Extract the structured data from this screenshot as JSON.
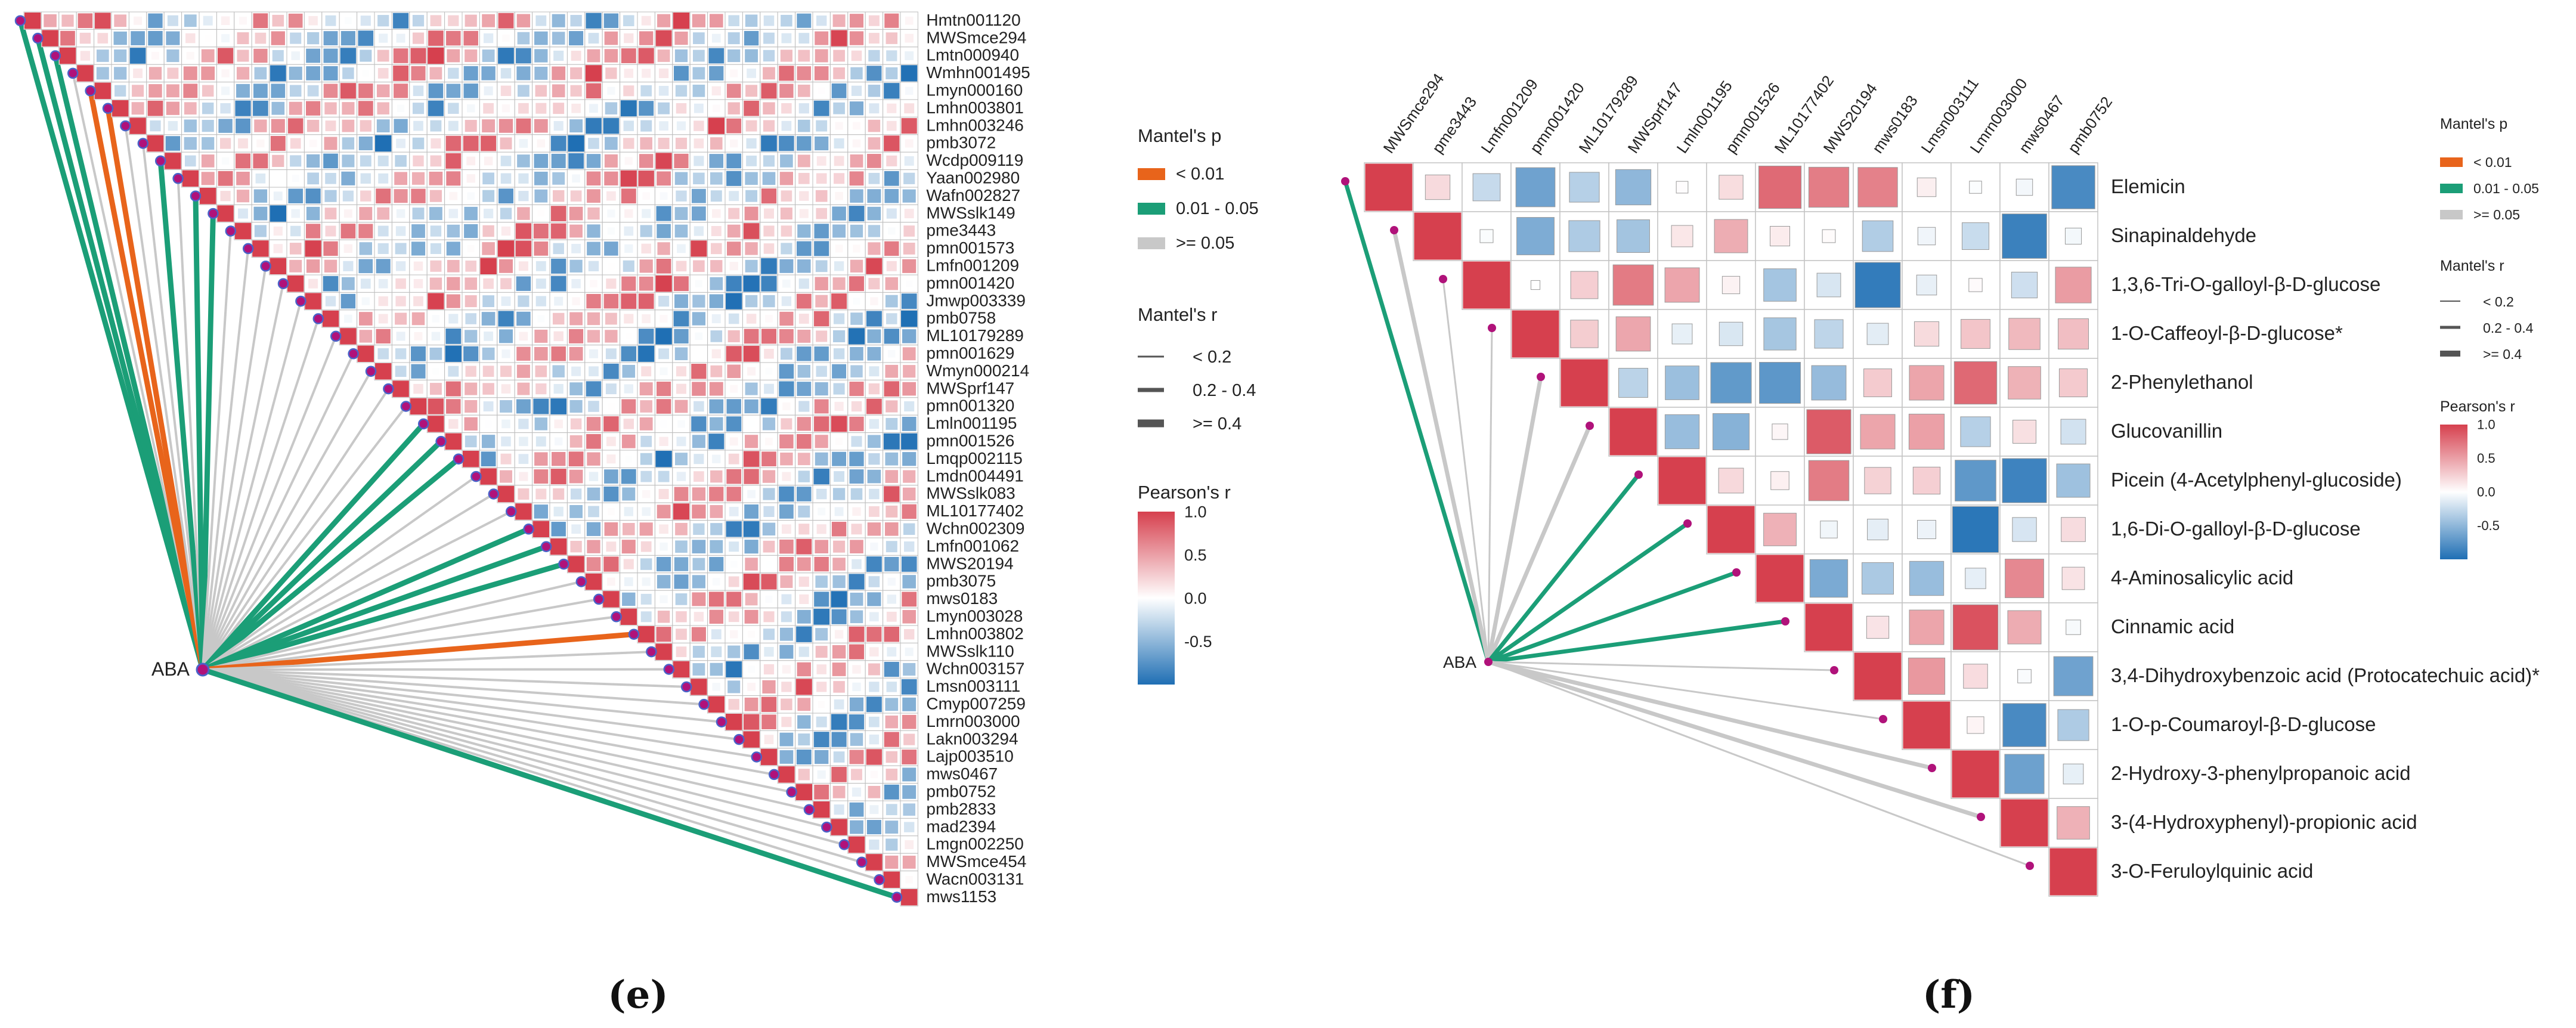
{
  "panels": [
    {
      "id": "e",
      "label_text": "(e)"
    },
    {
      "id": "f",
      "label_text": "(f)"
    }
  ],
  "legend": {
    "mantel_p": {
      "title": "Mantel's p",
      "items": [
        {
          "label": "< 0.01",
          "color": "#E8641B"
        },
        {
          "label": "0.01 - 0.05",
          "color": "#1B9E77"
        },
        {
          "label": ">= 0.05",
          "color": "#C8C8C8"
        }
      ]
    },
    "mantel_r": {
      "title": "Mantel's r",
      "items": [
        {
          "label": "< 0.2",
          "width_rank": 1
        },
        {
          "label": "0.2 - 0.4",
          "width_rank": 2
        },
        {
          "label": ">= 0.4",
          "width_rank": 3
        }
      ]
    },
    "pearson": {
      "title": "Pearson's r",
      "ticks": [
        "1.0",
        "0.5",
        "0.0",
        "-0.5"
      ],
      "tick_values": [
        1.0,
        0.5,
        0.0,
        -0.5
      ],
      "colors": [
        "#D6404E",
        "#FFFFFF",
        "#1F6FB4"
      ]
    }
  },
  "chart_data": [
    {
      "type": "heatmap",
      "panel": "e",
      "title": "",
      "source": "ABA",
      "variables": [
        "Hmtn001120",
        "MWSmce294",
        "Lmtn000940",
        "Wmhn001495",
        "Lmyn000160",
        "Lmhn003801",
        "Lmhn003246",
        "pmb3072",
        "Wcdp009119",
        "Yaan002980",
        "Wafn002827",
        "MWSslk149",
        "pme3443",
        "pmn001573",
        "Lmfn001209",
        "pmn001420",
        "Jmwp003339",
        "pmb0758",
        "ML10179289",
        "pmn001629",
        "Wmyn000214",
        "MWSprf147",
        "pmn001320",
        "Lmln001195",
        "pmn001526",
        "Lmqp002115",
        "Lmdn004491",
        "MWSslk083",
        "ML10177402",
        "Wchn002309",
        "Lmfn001062",
        "MWS20194",
        "pmb3075",
        "mws0183",
        "Lmyn003028",
        "Lmhn003802",
        "MWSslk110",
        "Wchn003157",
        "Lmsn003111",
        "Cmyp007259",
        "Lmrn003000",
        "Lakn003294",
        "Lajp003510",
        "mws0467",
        "pmb0752",
        "pmb2833",
        "mad2394",
        "Lmgn002250",
        "MWSmce454",
        "Wacn003131",
        "mws1153"
      ],
      "mantel_p_class": [
        "0.01-0.05",
        "0.01-0.05",
        "0.01-0.05",
        ">=0.05",
        "<0.01",
        "<0.01",
        ">=0.05",
        ">=0.05",
        "0.01-0.05",
        ">=0.05",
        "0.01-0.05",
        "0.01-0.05",
        ">=0.05",
        ">=0.05",
        ">=0.05",
        ">=0.05",
        ">=0.05",
        ">=0.05",
        ">=0.05",
        ">=0.05",
        ">=0.05",
        ">=0.05",
        ">=0.05",
        "0.01-0.05",
        "0.01-0.05",
        "0.01-0.05",
        ">=0.05",
        ">=0.05",
        ">=0.05",
        "0.01-0.05",
        "0.01-0.05",
        "0.01-0.05",
        ">=0.05",
        ">=0.05",
        ">=0.05",
        "<0.01",
        ">=0.05",
        ">=0.05",
        ">=0.05",
        ">=0.05",
        ">=0.05",
        ">=0.05",
        ">=0.05",
        ">=0.05",
        ">=0.05",
        ">=0.05",
        ">=0.05",
        ">=0.05",
        ">=0.05",
        ">=0.05",
        "0.01-0.05"
      ],
      "mantel_r_class": [
        "0.2-0.4",
        "0.2-0.4",
        "0.2-0.4",
        "<0.2",
        "0.2-0.4",
        "0.2-0.4",
        "<0.2",
        "<0.2",
        "0.2-0.4",
        "<0.2",
        "0.2-0.4",
        "0.2-0.4",
        "<0.2",
        "<0.2",
        "<0.2",
        "<0.2",
        "<0.2",
        "<0.2",
        "<0.2",
        "<0.2",
        "<0.2",
        "<0.2",
        "<0.2",
        "0.2-0.4",
        "0.2-0.4",
        "0.2-0.4",
        "<0.2",
        "<0.2",
        "<0.2",
        "0.2-0.4",
        "0.2-0.4",
        "0.2-0.4",
        "<0.2",
        "<0.2",
        "<0.2",
        "0.2-0.4",
        "<0.2",
        "<0.2",
        "<0.2",
        "<0.2",
        "<0.2",
        "<0.2",
        "<0.2",
        "<0.2",
        "<0.2",
        "<0.2",
        "<0.2",
        "<0.2",
        "<0.2",
        "<0.2",
        "0.2-0.4"
      ],
      "pearson_range": [
        -1,
        1
      ]
    },
    {
      "type": "heatmap",
      "panel": "f",
      "title": "",
      "source": "ABA",
      "column_labels": [
        "MWSmce294",
        "pme3443",
        "Lmfn001209",
        "pmn001420",
        "ML10179289",
        "MWSprf147",
        "Lmln001195",
        "pmn001526",
        "ML10177402",
        "MWS20194",
        "mws0183",
        "Lmsn003111",
        "Lmrn003000",
        "mws0467",
        "pmb0752"
      ],
      "row_labels": [
        "Elemicin",
        "Sinapinaldehyde",
        "1,3,6-Tri-O-galloyl-β-D-glucose",
        "1-O-Caffeoyl-β-D-glucose*",
        "2-Phenylethanol",
        "Glucovanillin",
        "Picein (4-Acetylphenyl-glucoside)",
        "1,6-Di-O-galloyl-β-D-glucose",
        "4-Aminosalicylic acid",
        "Cinnamic acid",
        "3,4-Dihydroxybenzoic acid (Protocatechuic acid)*",
        "1-O-p-Coumaroyl-β-D-glucose",
        "2-Hydroxy-3-phenylpropanoic acid",
        "3-(4-Hydroxyphenyl)-propionic acid",
        "3-O-Feruloylquinic acid"
      ],
      "mantel_p_class": [
        "0.01-0.05",
        ">=0.05",
        ">=0.05",
        ">=0.05",
        ">=0.05",
        ">=0.05",
        "0.01-0.05",
        "0.01-0.05",
        "0.01-0.05",
        "0.01-0.05",
        ">=0.05",
        ">=0.05",
        ">=0.05",
        ">=0.05",
        ">=0.05"
      ],
      "mantel_r_class": [
        "0.2-0.4",
        "0.2-0.4",
        "<0.2",
        "<0.2",
        "0.2-0.4",
        "0.2-0.4",
        "0.2-0.4",
        "0.2-0.4",
        "0.2-0.4",
        "0.2-0.4",
        "<0.2",
        "<0.2",
        "0.2-0.4",
        "0.2-0.4",
        "<0.2"
      ],
      "pearson_range": [
        -1,
        1
      ]
    }
  ]
}
